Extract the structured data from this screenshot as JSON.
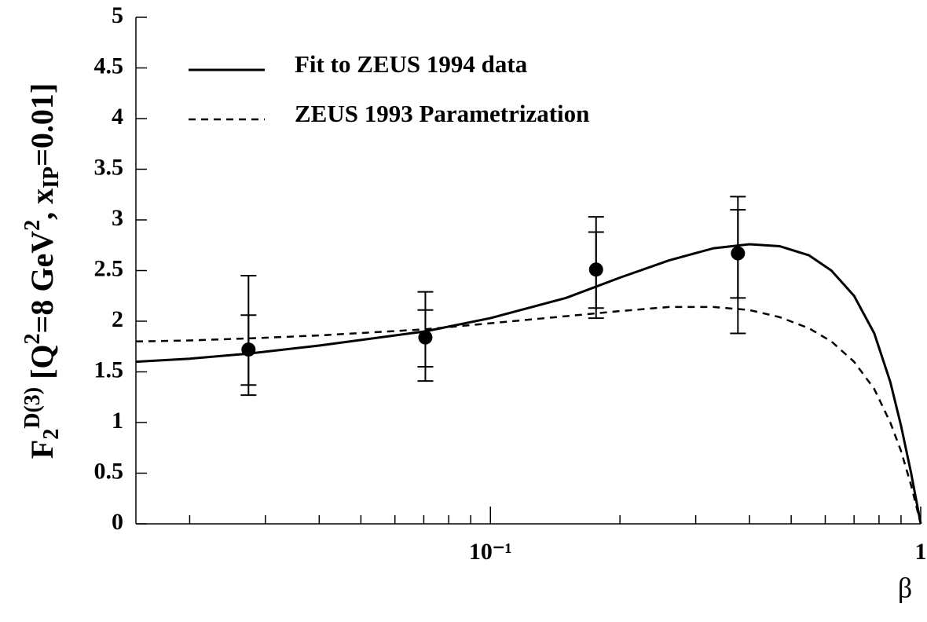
{
  "chart_data": {
    "type": "line",
    "xlabel": "β",
    "ylabel": [
      {
        "text": "F",
        "shift": "base"
      },
      {
        "text": "2",
        "shift": "sub"
      },
      {
        "text": "D(3)",
        "shift": "sup"
      },
      {
        "text": " [Q",
        "shift": "base"
      },
      {
        "text": "2",
        "shift": "sup"
      },
      {
        "text": "=8 GeV",
        "shift": "base"
      },
      {
        "text": "2",
        "shift": "sup"
      },
      {
        "text": ", x",
        "shift": "base"
      },
      {
        "text": "IP",
        "shift": "sub"
      },
      {
        "text": "=0.01]",
        "shift": "base"
      }
    ],
    "log_x": true,
    "xlim": [
      0.015,
      1
    ],
    "xticks": [
      {
        "value": 0.1,
        "label": "10⁻¹"
      },
      1
    ],
    "xminorticks": [
      0.02,
      0.03,
      0.04,
      0.05,
      0.06,
      0.07,
      0.08,
      0.09,
      0.2,
      0.3,
      0.4,
      0.5,
      0.6,
      0.7,
      0.8,
      0.9
    ],
    "ylim": [
      0,
      5
    ],
    "yticks": [
      0,
      0.5,
      1,
      1.5,
      2,
      2.5,
      3,
      3.5,
      4,
      4.5,
      5
    ],
    "color": "#000000",
    "series": [
      {
        "name": "Fit to ZEUS 1994 data",
        "style": "solid",
        "x": [
          0.015,
          0.02,
          0.0274,
          0.04,
          0.0706,
          0.1,
          0.15,
          0.2,
          0.26,
          0.33,
          0.4,
          0.47,
          0.55,
          0.62,
          0.7,
          0.78,
          0.85,
          0.9,
          0.95,
          1.0
        ],
        "values": [
          1.6,
          1.63,
          1.68,
          1.76,
          1.9,
          2.03,
          2.23,
          2.43,
          2.6,
          2.72,
          2.76,
          2.74,
          2.65,
          2.5,
          2.25,
          1.88,
          1.4,
          0.97,
          0.5,
          0
        ]
      },
      {
        "name": "ZEUS 1993 Parametrization",
        "style": "dashed",
        "x": [
          0.015,
          0.02,
          0.0274,
          0.04,
          0.0706,
          0.1,
          0.15,
          0.2,
          0.26,
          0.33,
          0.4,
          0.47,
          0.55,
          0.62,
          0.7,
          0.78,
          0.85,
          0.9,
          0.95,
          1.0
        ],
        "values": [
          1.8,
          1.81,
          1.83,
          1.86,
          1.92,
          1.98,
          2.05,
          2.1,
          2.14,
          2.14,
          2.11,
          2.04,
          1.93,
          1.8,
          1.6,
          1.33,
          1.0,
          0.72,
          0.38,
          0
        ]
      }
    ],
    "points": {
      "x": [
        0.0274,
        0.0706,
        0.176,
        0.376
      ],
      "values": [
        1.72,
        1.84,
        2.51,
        2.67
      ],
      "stat_low": [
        1.37,
        1.55,
        2.13,
        2.23
      ],
      "stat_high": [
        2.06,
        2.11,
        2.88,
        3.1
      ],
      "total_low": [
        1.27,
        1.41,
        2.03,
        1.88
      ],
      "total_high": [
        2.45,
        2.29,
        3.03,
        3.23
      ]
    }
  }
}
